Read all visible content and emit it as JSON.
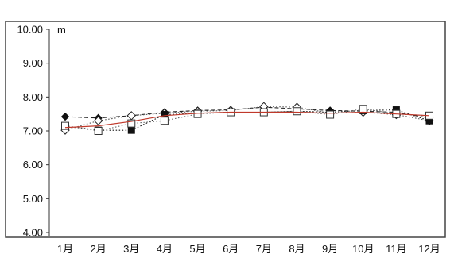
{
  "chart_data": {
    "type": "line",
    "title": "",
    "xlabel": "",
    "ylabel": "",
    "unit_label": "m",
    "categories": [
      "1月",
      "2月",
      "3月",
      "4月",
      "5月",
      "6月",
      "7月",
      "8月",
      "9月",
      "10月",
      "11月",
      "12月"
    ],
    "ylim": [
      4.0,
      10.0
    ],
    "yticks": [
      "4.00",
      "5.00",
      "6.00",
      "7.00",
      "8.00",
      "9.00",
      "10.00"
    ],
    "grid": false,
    "legend": "none",
    "series": [
      {
        "marker": "filled-diamond",
        "line_style": "dashed",
        "color": "#222222",
        "values": [
          7.42,
          7.38,
          7.45,
          7.55,
          7.6,
          7.62,
          7.7,
          7.65,
          7.6,
          7.58,
          7.55,
          7.38
        ]
      },
      {
        "marker": "open-diamond",
        "line_style": "dotted",
        "color": "#555555",
        "values": [
          7.02,
          7.3,
          7.45,
          7.52,
          7.58,
          7.6,
          7.72,
          7.7,
          7.52,
          7.55,
          7.48,
          7.3
        ]
      },
      {
        "marker": "filled-square",
        "line_style": "dotted",
        "color": "#111111",
        "values": [
          7.15,
          7.02,
          7.02,
          7.48,
          7.52,
          7.55,
          7.55,
          7.58,
          7.55,
          7.6,
          7.62,
          7.3
        ]
      },
      {
        "marker": "open-square",
        "line_style": "dotted",
        "color": "#666666",
        "values": [
          7.15,
          7.0,
          7.22,
          7.3,
          7.5,
          7.55,
          7.55,
          7.58,
          7.48,
          7.65,
          7.5,
          7.45
        ]
      },
      {
        "marker": "none",
        "line_style": "solid",
        "color": "#c0392b",
        "values": [
          7.1,
          7.15,
          7.28,
          7.45,
          7.52,
          7.55,
          7.55,
          7.55,
          7.52,
          7.55,
          7.5,
          7.45
        ]
      }
    ]
  }
}
